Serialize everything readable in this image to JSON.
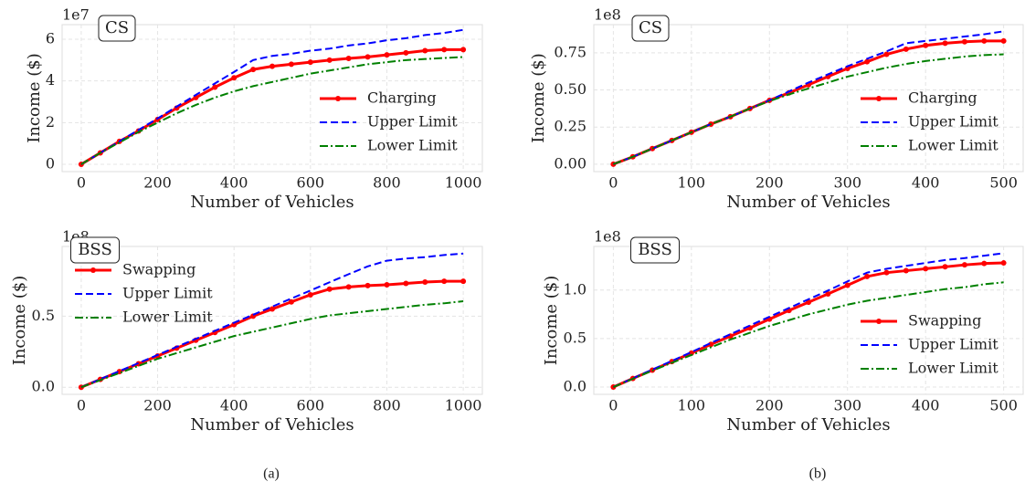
{
  "chart_data": [
    {
      "type": "line",
      "annotation": "CS",
      "offset_label": "1e7",
      "xlabel": "Number of Vehicles",
      "ylabel": "Income ($)",
      "x": [
        0,
        50,
        100,
        150,
        200,
        250,
        300,
        350,
        400,
        450,
        500,
        550,
        600,
        650,
        700,
        750,
        800,
        850,
        900,
        950,
        1000
      ],
      "series": [
        {
          "name": "Charging",
          "color": "#ff0000",
          "linestyle": "solid",
          "marker": "o",
          "values": [
            0,
            0.55,
            1.1,
            1.6,
            2.15,
            2.7,
            3.2,
            3.7,
            4.15,
            4.55,
            4.7,
            4.8,
            4.9,
            5.0,
            5.08,
            5.15,
            5.25,
            5.35,
            5.45,
            5.5,
            5.5
          ]
        },
        {
          "name": "Upper Limit",
          "color": "#0000ff",
          "linestyle": "dashed",
          "values": [
            0,
            0.55,
            1.1,
            1.65,
            2.2,
            2.77,
            3.33,
            3.88,
            4.43,
            5.0,
            5.2,
            5.3,
            5.45,
            5.55,
            5.7,
            5.8,
            5.95,
            6.05,
            6.2,
            6.3,
            6.45
          ]
        },
        {
          "name": "Lower Limit",
          "color": "#008000",
          "linestyle": "dashdot",
          "values": [
            0,
            0.55,
            1.05,
            1.55,
            2.0,
            2.45,
            2.85,
            3.2,
            3.5,
            3.75,
            3.95,
            4.15,
            4.35,
            4.5,
            4.65,
            4.8,
            4.9,
            5.0,
            5.05,
            5.1,
            5.15
          ]
        }
      ],
      "xlim": [
        -50,
        1050
      ],
      "xticks": [
        0,
        200,
        400,
        600,
        800,
        1000
      ],
      "ylim": [
        -0.35,
        6.7
      ],
      "yticks": [
        0,
        2,
        4,
        6
      ],
      "grid": true,
      "legend": "lower right"
    },
    {
      "type": "line",
      "annotation": "CS",
      "offset_label": "1e8",
      "xlabel": "Number of Vehicles",
      "ylabel": "Income ($)",
      "x": [
        0,
        25,
        50,
        75,
        100,
        125,
        150,
        175,
        200,
        225,
        250,
        275,
        300,
        325,
        350,
        375,
        400,
        425,
        450,
        475,
        500
      ],
      "series": [
        {
          "name": "Charging",
          "color": "#ff0000",
          "linestyle": "solid",
          "marker": "o",
          "values": [
            0,
            0.05,
            0.105,
            0.16,
            0.215,
            0.27,
            0.32,
            0.375,
            0.43,
            0.48,
            0.535,
            0.59,
            0.645,
            0.69,
            0.74,
            0.775,
            0.8,
            0.815,
            0.825,
            0.83,
            0.83
          ]
        },
        {
          "name": "Upper Limit",
          "color": "#0000ff",
          "linestyle": "dashed",
          "values": [
            0,
            0.05,
            0.105,
            0.16,
            0.215,
            0.27,
            0.32,
            0.375,
            0.43,
            0.49,
            0.55,
            0.605,
            0.66,
            0.71,
            0.76,
            0.815,
            0.83,
            0.845,
            0.86,
            0.875,
            0.895
          ]
        },
        {
          "name": "Lower Limit",
          "color": "#008000",
          "linestyle": "dashdot",
          "values": [
            0,
            0.05,
            0.105,
            0.16,
            0.215,
            0.27,
            0.32,
            0.375,
            0.425,
            0.47,
            0.51,
            0.55,
            0.59,
            0.62,
            0.65,
            0.675,
            0.695,
            0.71,
            0.725,
            0.735,
            0.74
          ]
        }
      ],
      "xlim": [
        -25,
        525
      ],
      "xticks": [
        0,
        100,
        200,
        300,
        400,
        500
      ],
      "ylim": [
        -0.05,
        0.94
      ],
      "yticks": [
        {
          "value": 0,
          "label": "0.00"
        },
        0.25,
        {
          "value": 0.5,
          "label": "0.50"
        },
        0.75
      ],
      "grid": true,
      "legend": "lower right"
    },
    {
      "type": "line",
      "annotation": "BSS",
      "offset_label": "1e8",
      "xlabel": "Number of Vehicles",
      "ylabel": "Income ($)",
      "x": [
        0,
        50,
        100,
        150,
        200,
        250,
        300,
        350,
        400,
        450,
        500,
        550,
        600,
        650,
        700,
        750,
        800,
        850,
        900,
        950,
        1000
      ],
      "series": [
        {
          "name": "Swapping",
          "color": "#ff0000",
          "linestyle": "solid",
          "marker": "o",
          "values": [
            0,
            0.055,
            0.11,
            0.165,
            0.22,
            0.275,
            0.33,
            0.385,
            0.44,
            0.5,
            0.55,
            0.6,
            0.65,
            0.69,
            0.705,
            0.715,
            0.72,
            0.73,
            0.74,
            0.745,
            0.745
          ]
        },
        {
          "name": "Upper Limit",
          "color": "#0000ff",
          "linestyle": "dashed",
          "values": [
            0,
            0.057,
            0.113,
            0.17,
            0.227,
            0.284,
            0.34,
            0.397,
            0.454,
            0.51,
            0.567,
            0.624,
            0.68,
            0.738,
            0.795,
            0.85,
            0.89,
            0.905,
            0.915,
            0.93,
            0.94
          ]
        },
        {
          "name": "Lower Limit",
          "color": "#008000",
          "linestyle": "dashdot",
          "values": [
            0,
            0.05,
            0.1,
            0.15,
            0.2,
            0.24,
            0.28,
            0.32,
            0.36,
            0.39,
            0.42,
            0.45,
            0.48,
            0.505,
            0.52,
            0.535,
            0.55,
            0.565,
            0.58,
            0.59,
            0.605
          ]
        }
      ],
      "xlim": [
        -50,
        1050
      ],
      "xticks": [
        0,
        200,
        400,
        600,
        800,
        1000
      ],
      "ylim": [
        -0.05,
        0.99
      ],
      "yticks": [
        {
          "value": 0,
          "label": "0.0"
        },
        0.5
      ],
      "grid": true,
      "legend": "upper left"
    },
    {
      "type": "line",
      "annotation": "BSS",
      "offset_label": "1e8",
      "xlabel": "Number of Vehicles",
      "ylabel": "Income ($)",
      "x": [
        0,
        25,
        50,
        75,
        100,
        125,
        150,
        175,
        200,
        225,
        250,
        275,
        300,
        325,
        350,
        375,
        400,
        425,
        450,
        475,
        500
      ],
      "series": [
        {
          "name": "Swapping",
          "color": "#ff0000",
          "linestyle": "solid",
          "marker": "o",
          "values": [
            0,
            0.088,
            0.175,
            0.263,
            0.35,
            0.44,
            0.525,
            0.61,
            0.7,
            0.79,
            0.875,
            0.96,
            1.05,
            1.14,
            1.18,
            1.2,
            1.22,
            1.24,
            1.26,
            1.275,
            1.28
          ]
        },
        {
          "name": "Upper Limit",
          "color": "#0000ff",
          "linestyle": "dashed",
          "values": [
            0,
            0.09,
            0.18,
            0.27,
            0.36,
            0.455,
            0.545,
            0.635,
            0.725,
            0.815,
            0.905,
            0.995,
            1.09,
            1.18,
            1.22,
            1.25,
            1.28,
            1.31,
            1.33,
            1.355,
            1.38
          ]
        },
        {
          "name": "Lower Limit",
          "color": "#008000",
          "linestyle": "dashdot",
          "values": [
            0,
            0.085,
            0.17,
            0.25,
            0.33,
            0.41,
            0.49,
            0.56,
            0.63,
            0.69,
            0.75,
            0.8,
            0.85,
            0.89,
            0.92,
            0.95,
            0.98,
            1.01,
            1.03,
            1.06,
            1.08
          ]
        }
      ],
      "xlim": [
        -25,
        525
      ],
      "xticks": [
        0,
        100,
        200,
        300,
        400,
        500
      ],
      "ylim": [
        -0.075,
        1.45
      ],
      "yticks": [
        {
          "value": 0,
          "label": "0.0"
        },
        0.5,
        {
          "value": 1,
          "label": "1.0"
        }
      ],
      "grid": true,
      "legend": "lower right"
    }
  ],
  "captions": [
    "(a)",
    "(b)"
  ]
}
